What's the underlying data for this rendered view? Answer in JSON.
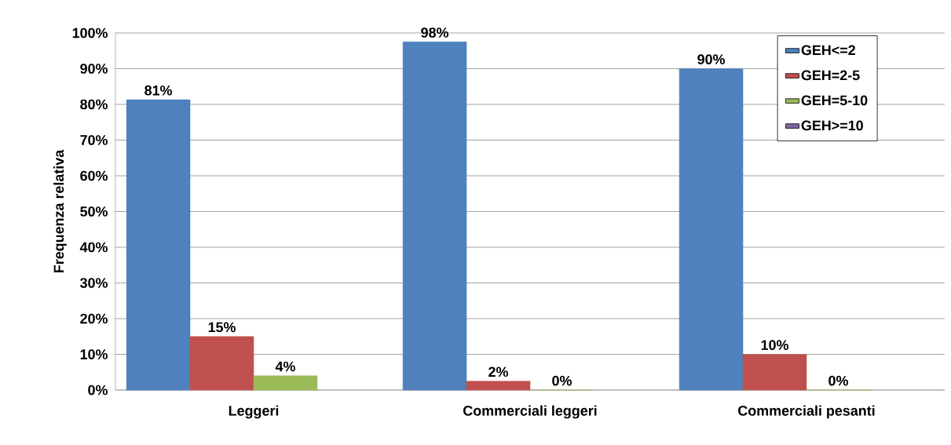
{
  "chart_data": {
    "type": "bar",
    "ylabel": "Frequenza relativa",
    "categories": [
      "Leggeri",
      "Commerciali leggeri",
      "Commerciali pesanti"
    ],
    "series": [
      {
        "name": "GEH<=2",
        "color": "#4f81bd",
        "values": [
          81.3,
          97.5,
          90
        ],
        "value_labels": [
          "81%",
          "98%",
          "90%"
        ]
      },
      {
        "name": "GEH=2-5",
        "color": "#c0504d",
        "values": [
          15,
          2.5,
          10
        ],
        "value_labels": [
          "15%",
          "2%",
          "10%"
        ]
      },
      {
        "name": "GEH=5-10",
        "color": "#9bbb59",
        "values": [
          4,
          0,
          0
        ],
        "value_labels": [
          "4%",
          "0%",
          "0%"
        ]
      },
      {
        "name": "GEH>=10",
        "color": "#8064a2",
        "values": [
          null,
          null,
          null
        ]
      }
    ],
    "ylim": [
      0,
      100
    ],
    "yticks": [
      {
        "value": 0,
        "label": "0%"
      },
      {
        "value": 10,
        "label": "10%"
      },
      {
        "value": 20,
        "label": "20%"
      },
      {
        "value": 30,
        "label": "30%"
      },
      {
        "value": 40,
        "label": "40%"
      },
      {
        "value": 50,
        "label": "50%"
      },
      {
        "value": 60,
        "label": "60%"
      },
      {
        "value": 70,
        "label": "70%"
      },
      {
        "value": 80,
        "label": "80%"
      },
      {
        "value": 90,
        "label": "90%"
      },
      {
        "value": 100,
        "label": "100%"
      }
    ],
    "grid": "y",
    "legend": "top right"
  }
}
